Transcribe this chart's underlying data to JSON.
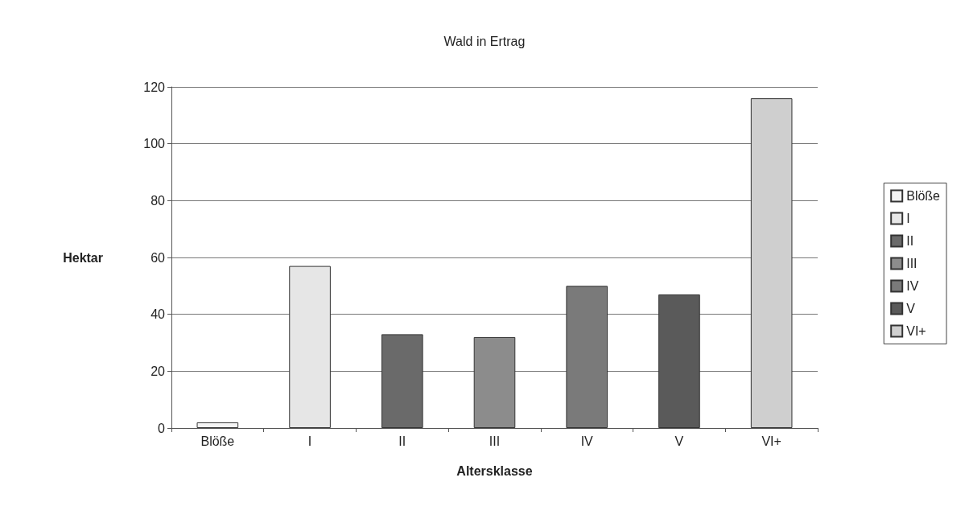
{
  "chart_data": {
    "type": "bar",
    "title": "Wald in Ertrag",
    "xlabel": "Altersklasse",
    "ylabel": "Hektar",
    "categories": [
      "Blöße",
      "I",
      "II",
      "III",
      "IV",
      "V",
      "VI+"
    ],
    "series": [
      {
        "name": "Blöße",
        "color": "#f4f4f4",
        "values": [
          2,
          null,
          null,
          null,
          null,
          null,
          null
        ]
      },
      {
        "name": "I",
        "color": "#e6e6e6",
        "values": [
          null,
          57,
          null,
          null,
          null,
          null,
          null
        ]
      },
      {
        "name": "II",
        "color": "#6a6a6a",
        "values": [
          null,
          null,
          33,
          null,
          null,
          null,
          null
        ]
      },
      {
        "name": "III",
        "color": "#8c8c8c",
        "values": [
          null,
          null,
          null,
          32,
          null,
          null,
          null
        ]
      },
      {
        "name": "IV",
        "color": "#7a7a7a",
        "values": [
          null,
          null,
          null,
          null,
          50,
          null,
          null
        ]
      },
      {
        "name": "V",
        "color": "#5a5a5a",
        "values": [
          null,
          null,
          null,
          null,
          null,
          47,
          null
        ]
      },
      {
        "name": "VI+",
        "color": "#cfcfcf",
        "values": [
          null,
          null,
          null,
          null,
          null,
          null,
          116
        ]
      }
    ],
    "stacked": true,
    "ylim": [
      0,
      120
    ],
    "yticks": [
      0,
      20,
      40,
      60,
      80,
      100,
      120
    ],
    "grid": "y",
    "legend": "right"
  }
}
